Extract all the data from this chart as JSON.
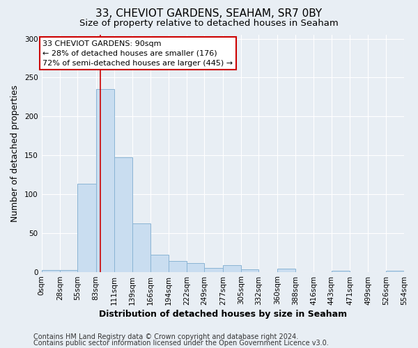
{
  "title": "33, CHEVIOT GARDENS, SEAHAM, SR7 0BY",
  "subtitle": "Size of property relative to detached houses in Seaham",
  "xlabel": "Distribution of detached houses by size in Seaham",
  "ylabel": "Number of detached properties",
  "bin_edges": [
    0,
    28,
    55,
    83,
    111,
    139,
    166,
    194,
    222,
    249,
    277,
    305,
    332,
    360,
    388,
    416,
    443,
    471,
    499,
    526,
    554
  ],
  "bin_labels": [
    "0sqm",
    "28sqm",
    "55sqm",
    "83sqm",
    "111sqm",
    "139sqm",
    "166sqm",
    "194sqm",
    "222sqm",
    "249sqm",
    "277sqm",
    "305sqm",
    "332sqm",
    "360sqm",
    "388sqm",
    "416sqm",
    "443sqm",
    "471sqm",
    "499sqm",
    "526sqm",
    "554sqm"
  ],
  "bar_heights": [
    2,
    2,
    113,
    235,
    147,
    62,
    22,
    14,
    11,
    5,
    9,
    3,
    0,
    4,
    0,
    0,
    1,
    0,
    0,
    1
  ],
  "bar_color": "#c9ddf0",
  "bar_edge_color": "#8ab4d4",
  "property_size": 90,
  "vline_color": "#cc0000",
  "annotation_text": "33 CHEVIOT GARDENS: 90sqm\n← 28% of detached houses are smaller (176)\n72% of semi-detached houses are larger (445) →",
  "annotation_box_color": "#ffffff",
  "annotation_box_edge_color": "#cc0000",
  "ylim": [
    0,
    305
  ],
  "yticks": [
    0,
    50,
    100,
    150,
    200,
    250,
    300
  ],
  "footer_line1": "Contains HM Land Registry data © Crown copyright and database right 2024.",
  "footer_line2": "Contains public sector information licensed under the Open Government Licence v3.0.",
  "background_color": "#e8eef4",
  "plot_bg_color": "#e8eef4",
  "grid_color": "#ffffff",
  "title_fontsize": 11,
  "subtitle_fontsize": 9.5,
  "axis_label_fontsize": 9,
  "tick_fontsize": 7.5,
  "annotation_fontsize": 8,
  "footer_fontsize": 7
}
